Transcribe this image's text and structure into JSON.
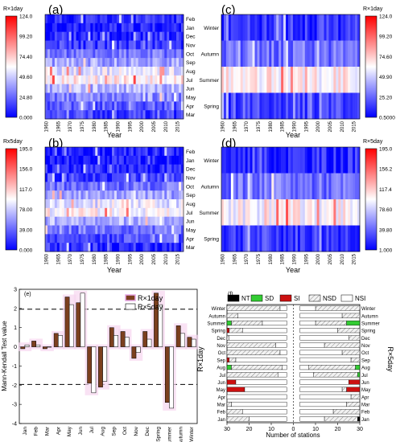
{
  "panels": {
    "a": {
      "label": "(a)",
      "xlabel": "Year",
      "cbar_title": "R×1day",
      "cbar_ticks": [
        "124.0",
        "99.20",
        "74.40",
        "49.60",
        "24.80",
        "0.000"
      ],
      "rows": [
        "Feb",
        "Jan",
        "Dec",
        "Nov",
        "Oct",
        "Sep",
        "Aug",
        "Jul",
        "Jun",
        "May",
        "Apr",
        "Mar"
      ]
    },
    "b": {
      "label": "(b)",
      "xlabel": "Year",
      "cbar_title": "Rx5day",
      "cbar_ticks": [
        "195.0",
        "156.0",
        "117.0",
        "78.00",
        "39.00",
        "0.000"
      ],
      "rows": [
        "Feb",
        "Jan",
        "Dec",
        "Nov",
        "Oct",
        "Sep",
        "Aug",
        "Jul",
        "Jun",
        "May",
        "Apr",
        "Mar"
      ]
    },
    "c": {
      "label": "(c)",
      "xlabel": "Year",
      "cbar_title": "R×1day",
      "cbar_ticks": [
        "124.0",
        "99.20",
        "74.60",
        "49.90",
        "25.20",
        "0.5000"
      ],
      "rows": [
        "Winter",
        "Autumn",
        "Summer",
        "Spring"
      ]
    },
    "d": {
      "label": "(d)",
      "xlabel": "Year",
      "cbar_title": "R×5day",
      "cbar_ticks": [
        "195.0",
        "156.2",
        "117.4",
        "78.60",
        "39.80",
        "1.000"
      ],
      "rows": [
        "Winter",
        "Autumn",
        "Summer",
        "Spring"
      ]
    },
    "year_ticks": [
      "1960",
      "1965",
      "1970",
      "1975",
      "1980",
      "1985",
      "1990",
      "1995",
      "2000",
      "2005",
      "2010",
      "2015"
    ]
  },
  "chart_data": [
    {
      "type": "bar",
      "panel": "(e)",
      "ylabel": "Mann-Kendall Test value",
      "ylim": [
        -4,
        3
      ],
      "yticks": [
        "3",
        "2",
        "1",
        "0",
        "-1",
        "-2",
        "-3",
        "-4"
      ],
      "reference_lines": [
        1.96,
        -1.96
      ],
      "categories": [
        "Jan",
        "Feb",
        "Mar",
        "Apr",
        "May",
        "Jun",
        "Jul",
        "Aug",
        "Sep",
        "Oct",
        "Nov",
        "Dec",
        "Spring",
        "Summer",
        "Autumn",
        "Winter"
      ],
      "series": [
        {
          "name": "R×1day",
          "color": "#7B3F1E",
          "values": [
            -0.1,
            0.3,
            -0.1,
            0.7,
            2.6,
            2.3,
            -1.9,
            -2.1,
            1.0,
            0.8,
            -0.6,
            0.8,
            2.8,
            -2.9,
            1.1,
            0.5
          ]
        },
        {
          "name": "R×5day",
          "color": "#FFFFFF",
          "values": [
            0.1,
            0.1,
            0.0,
            0.6,
            2.2,
            2.8,
            -2.4,
            -1.8,
            0.6,
            0.5,
            -0.3,
            0.4,
            2.2,
            -3.2,
            0.7,
            0.4
          ]
        }
      ],
      "legend": "top-right"
    },
    {
      "type": "bar",
      "panel": "(f)",
      "xlabel": "Number of stations",
      "left_ylabel": "R×1day",
      "right_ylabel": "R×5day",
      "xticks": [
        "30",
        "20",
        "10",
        "0",
        "10",
        "20",
        "30"
      ],
      "legend": [
        "NT",
        "SD",
        "SI",
        "NSD",
        "NSI"
      ],
      "legend_colors": {
        "NT": "#000000",
        "SD": "#33cc33",
        "SI": "#cc1111",
        "NSD": "#d9d9d9",
        "NSI": "#ffffff"
      },
      "categories": [
        "Winter",
        "Autumn",
        "Summer",
        "Spring",
        "Dec",
        "Nov",
        "Oct",
        "Sep",
        "Aug",
        "Jul",
        "Jun",
        "May",
        "Apr",
        "Mar",
        "Feb",
        "Jan"
      ],
      "left_series": {
        "NT": [
          0,
          0,
          0,
          0,
          0,
          0,
          0,
          0,
          0,
          0,
          0,
          0,
          0,
          0,
          0,
          0
        ],
        "SD": [
          0,
          0,
          2,
          0,
          0,
          0,
          0,
          0,
          2,
          0,
          0,
          0,
          0,
          0,
          0,
          0
        ],
        "SI": [
          0,
          0,
          0,
          1,
          0,
          0,
          0,
          1,
          0,
          0,
          4,
          8,
          0,
          0,
          0,
          0
        ],
        "NSD": [
          24,
          5,
          14,
          6,
          1,
          22,
          24,
          3,
          23,
          23,
          0,
          0,
          0,
          2,
          7,
          10
        ],
        "NSI": [
          3,
          22,
          11,
          20,
          26,
          5,
          3,
          23,
          2,
          4,
          23,
          19,
          27,
          25,
          20,
          17
        ]
      },
      "right_series": {
        "NT": [
          0,
          0,
          0,
          0,
          0,
          0,
          0,
          0,
          0,
          0,
          0,
          0,
          0,
          0,
          0,
          1
        ],
        "SD": [
          0,
          0,
          6,
          0,
          0,
          0,
          0,
          0,
          2,
          1,
          0,
          0,
          0,
          0,
          0,
          0
        ],
        "SI": [
          0,
          0,
          0,
          0,
          0,
          0,
          0,
          0,
          0,
          0,
          5,
          6,
          0,
          0,
          0,
          0
        ],
        "NSD": [
          20,
          8,
          14,
          10,
          5,
          16,
          8,
          4,
          21,
          20,
          0,
          2,
          4,
          6,
          12,
          15
        ],
        "NSI": [
          7,
          19,
          7,
          17,
          22,
          11,
          19,
          23,
          4,
          6,
          22,
          19,
          23,
          21,
          15,
          11
        ]
      }
    }
  ]
}
